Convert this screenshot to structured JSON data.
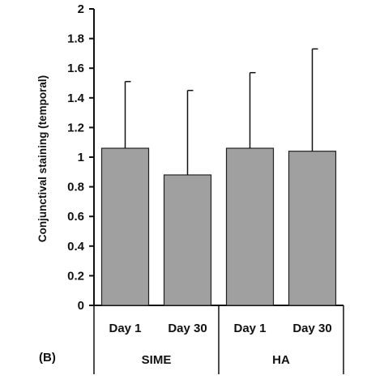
{
  "chart_data": {
    "type": "bar",
    "panel_label": "(B)",
    "title": "",
    "xlabel": "",
    "ylabel": "Conjunctival staining (temporal)",
    "ylim": [
      0,
      2
    ],
    "yticks": [
      "0",
      "0.2",
      "0.4",
      "0.6",
      "0.8",
      "1",
      "1.2",
      "1.4",
      "1.6",
      "1.8",
      "2"
    ],
    "categories": [
      "Day 1",
      "Day 30",
      "Day 1",
      "Day 30"
    ],
    "groups": [
      {
        "name": "SIME",
        "categories": [
          0,
          1
        ]
      },
      {
        "name": "HA",
        "categories": [
          2,
          3
        ]
      }
    ],
    "values": [
      1.06,
      0.88,
      1.06,
      1.04
    ],
    "error_upper": [
      0.45,
      0.57,
      0.51,
      0.69
    ],
    "bar_color": "#a0a0a0",
    "bar_edge_color": "#222222",
    "axis_color": "#111111",
    "grid": false,
    "legend": "none"
  }
}
